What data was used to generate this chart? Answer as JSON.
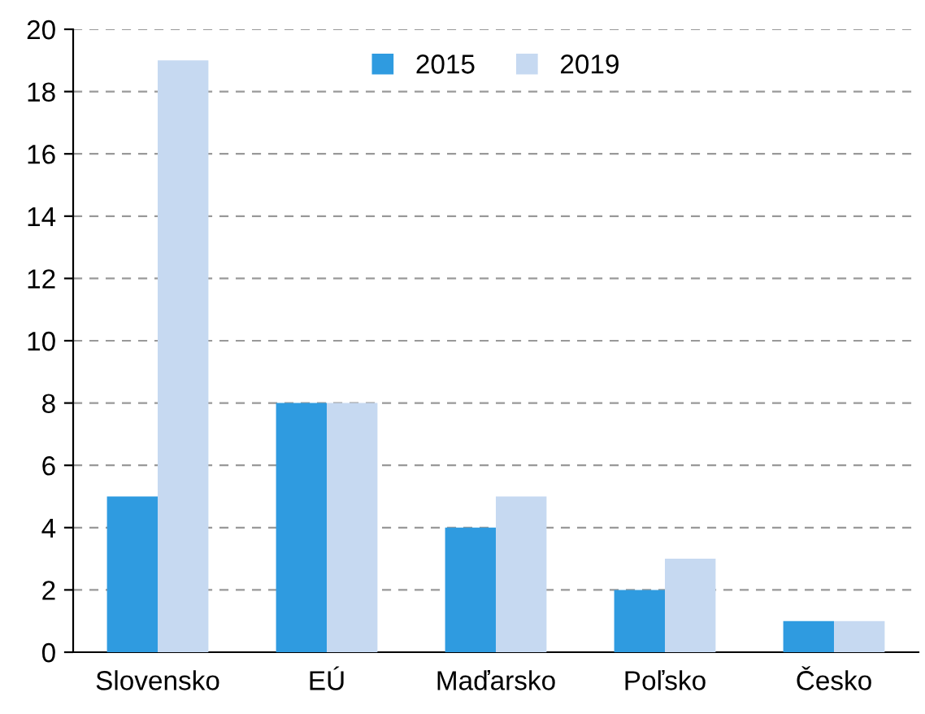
{
  "chart_data": {
    "type": "bar",
    "categories": [
      "Slovensko",
      "EÚ",
      "Maďarsko",
      "Poľsko",
      "Česko"
    ],
    "series": [
      {
        "name": "2015",
        "color": "#2f9be0",
        "values": [
          5,
          8,
          4,
          2,
          1
        ]
      },
      {
        "name": "2019",
        "color": "#c6d9f1",
        "values": [
          19,
          8,
          5,
          3,
          1
        ]
      }
    ],
    "ylim": [
      0,
      20
    ],
    "yticks": [
      0,
      2,
      4,
      6,
      8,
      10,
      12,
      14,
      16,
      18,
      20
    ],
    "grid": "y",
    "legend": "top"
  }
}
